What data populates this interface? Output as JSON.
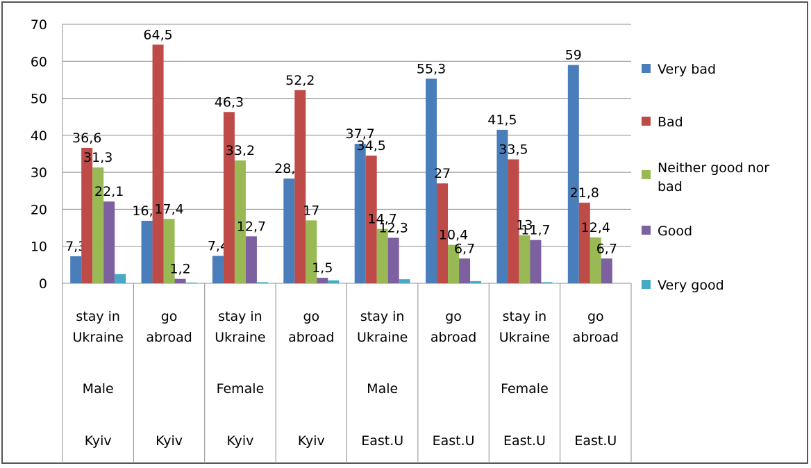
{
  "chart_data": {
    "type": "bar",
    "title": "",
    "xlabel": "",
    "ylabel": "",
    "ylim": [
      0,
      70
    ],
    "yticks": [
      0,
      10,
      20,
      30,
      40,
      50,
      60,
      70
    ],
    "grid": true,
    "legend_position": "right",
    "category_levels": [
      {
        "labels": [
          "stay in Ukraine",
          "go abroad",
          "stay in Ukraine",
          "go abroad",
          "stay in Ukraine",
          "go abroad",
          "stay in Ukraine",
          "go abroad"
        ]
      },
      {
        "labels": [
          "Male",
          "",
          "Female",
          "",
          "Male",
          "",
          "Female",
          ""
        ]
      },
      {
        "labels": [
          "Kyiv",
          "Kyiv",
          "Kyiv",
          "Kyiv",
          "East.U",
          "East.U",
          "East.U",
          "East.U"
        ]
      }
    ],
    "series": [
      {
        "name": "Very bad",
        "color": "#4a7ebb",
        "values": [
          7.3,
          16.9,
          7.4,
          28.3,
          37.7,
          55.3,
          41.5,
          59
        ],
        "labels": [
          "7,3",
          "16,9",
          "7,4",
          "28,3",
          "37,7",
          "55,3",
          "41,5",
          "59"
        ]
      },
      {
        "name": "Bad",
        "color": "#be4b48",
        "values": [
          36.6,
          64.5,
          46.3,
          52.2,
          34.5,
          27,
          33.5,
          21.8
        ],
        "labels": [
          "36,6",
          "64,5",
          "46,3",
          "52,2",
          "34,5",
          "27",
          "33,5",
          "21,8"
        ]
      },
      {
        "name": "Neither good nor bad",
        "color": "#98b954",
        "values": [
          31.3,
          17.4,
          33.2,
          17,
          14.7,
          10.4,
          13,
          12.4
        ],
        "labels": [
          "31,3",
          "17,4",
          "33,2",
          "17",
          "14,7",
          "10,4",
          "13",
          "12,4"
        ]
      },
      {
        "name": "Good",
        "color": "#7d60a0",
        "values": [
          22.1,
          1.2,
          12.7,
          1.5,
          12.3,
          6.7,
          11.7,
          6.7
        ],
        "labels": [
          "22,1",
          "1,2",
          "12,7",
          "1,5",
          "12,3",
          "6,7",
          "11,7",
          "6,7"
        ]
      },
      {
        "name": "Very good",
        "color": "#46aac5",
        "values": [
          2.5,
          0.2,
          0.3,
          0.8,
          1.1,
          0.6,
          0.3,
          0
        ],
        "labels": [
          "",
          "",
          "",
          "",
          "",
          "",
          "",
          ""
        ]
      }
    ]
  }
}
